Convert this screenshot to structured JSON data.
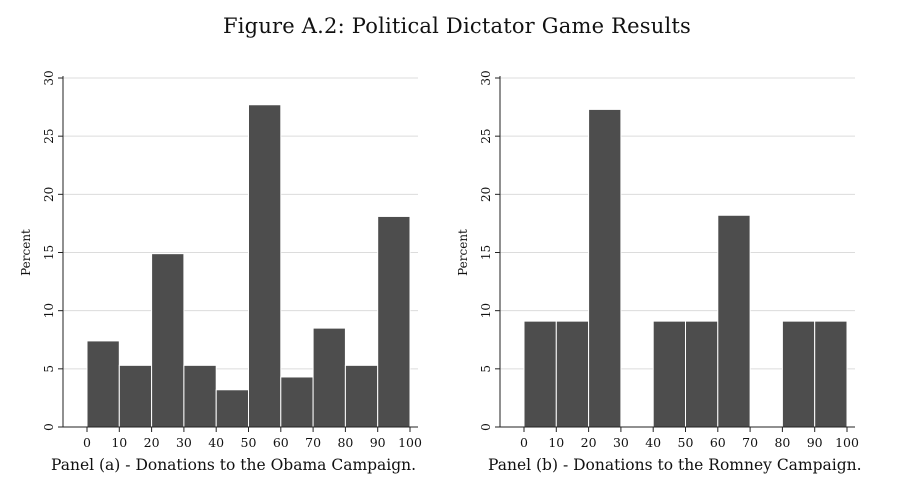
{
  "title": "Figure A.2: Political Dictator Game Results",
  "chart_data": [
    {
      "type": "bar",
      "caption": "Panel (a) - Donations to the Obama Campaign.",
      "ylabel": "Percent",
      "xlabel": "",
      "x_ticks": [
        "0",
        "10",
        "20",
        "30",
        "40",
        "50",
        "60",
        "70",
        "80",
        "90",
        "100"
      ],
      "y_ticks": [
        "0",
        "5",
        "10",
        "15",
        "20",
        "25",
        "30"
      ],
      "xlim": [
        0,
        100
      ],
      "ylim": [
        0,
        30
      ],
      "bin_edges": [
        0,
        10,
        20,
        30,
        40,
        50,
        60,
        70,
        80,
        90,
        100
      ],
      "values": [
        7.4,
        5.3,
        14.9,
        5.3,
        3.2,
        27.7,
        4.3,
        8.5,
        5.3,
        18.1
      ],
      "bar_color": "#4d4d4d",
      "grid": true
    },
    {
      "type": "bar",
      "caption": "Panel (b) - Donations to the Romney Campaign.",
      "ylabel": "Percent",
      "xlabel": "",
      "x_ticks": [
        "0",
        "10",
        "20",
        "30",
        "40",
        "50",
        "60",
        "70",
        "80",
        "90",
        "100"
      ],
      "y_ticks": [
        "0",
        "5",
        "10",
        "15",
        "20",
        "25",
        "30"
      ],
      "xlim": [
        0,
        100
      ],
      "ylim": [
        0,
        30
      ],
      "bin_edges": [
        0,
        10,
        20,
        30,
        40,
        50,
        60,
        70,
        80,
        90,
        100
      ],
      "values": [
        9.1,
        9.1,
        27.3,
        0,
        9.1,
        9.1,
        18.2,
        0,
        9.1,
        9.1
      ],
      "bar_color": "#4d4d4d",
      "grid": true
    }
  ]
}
